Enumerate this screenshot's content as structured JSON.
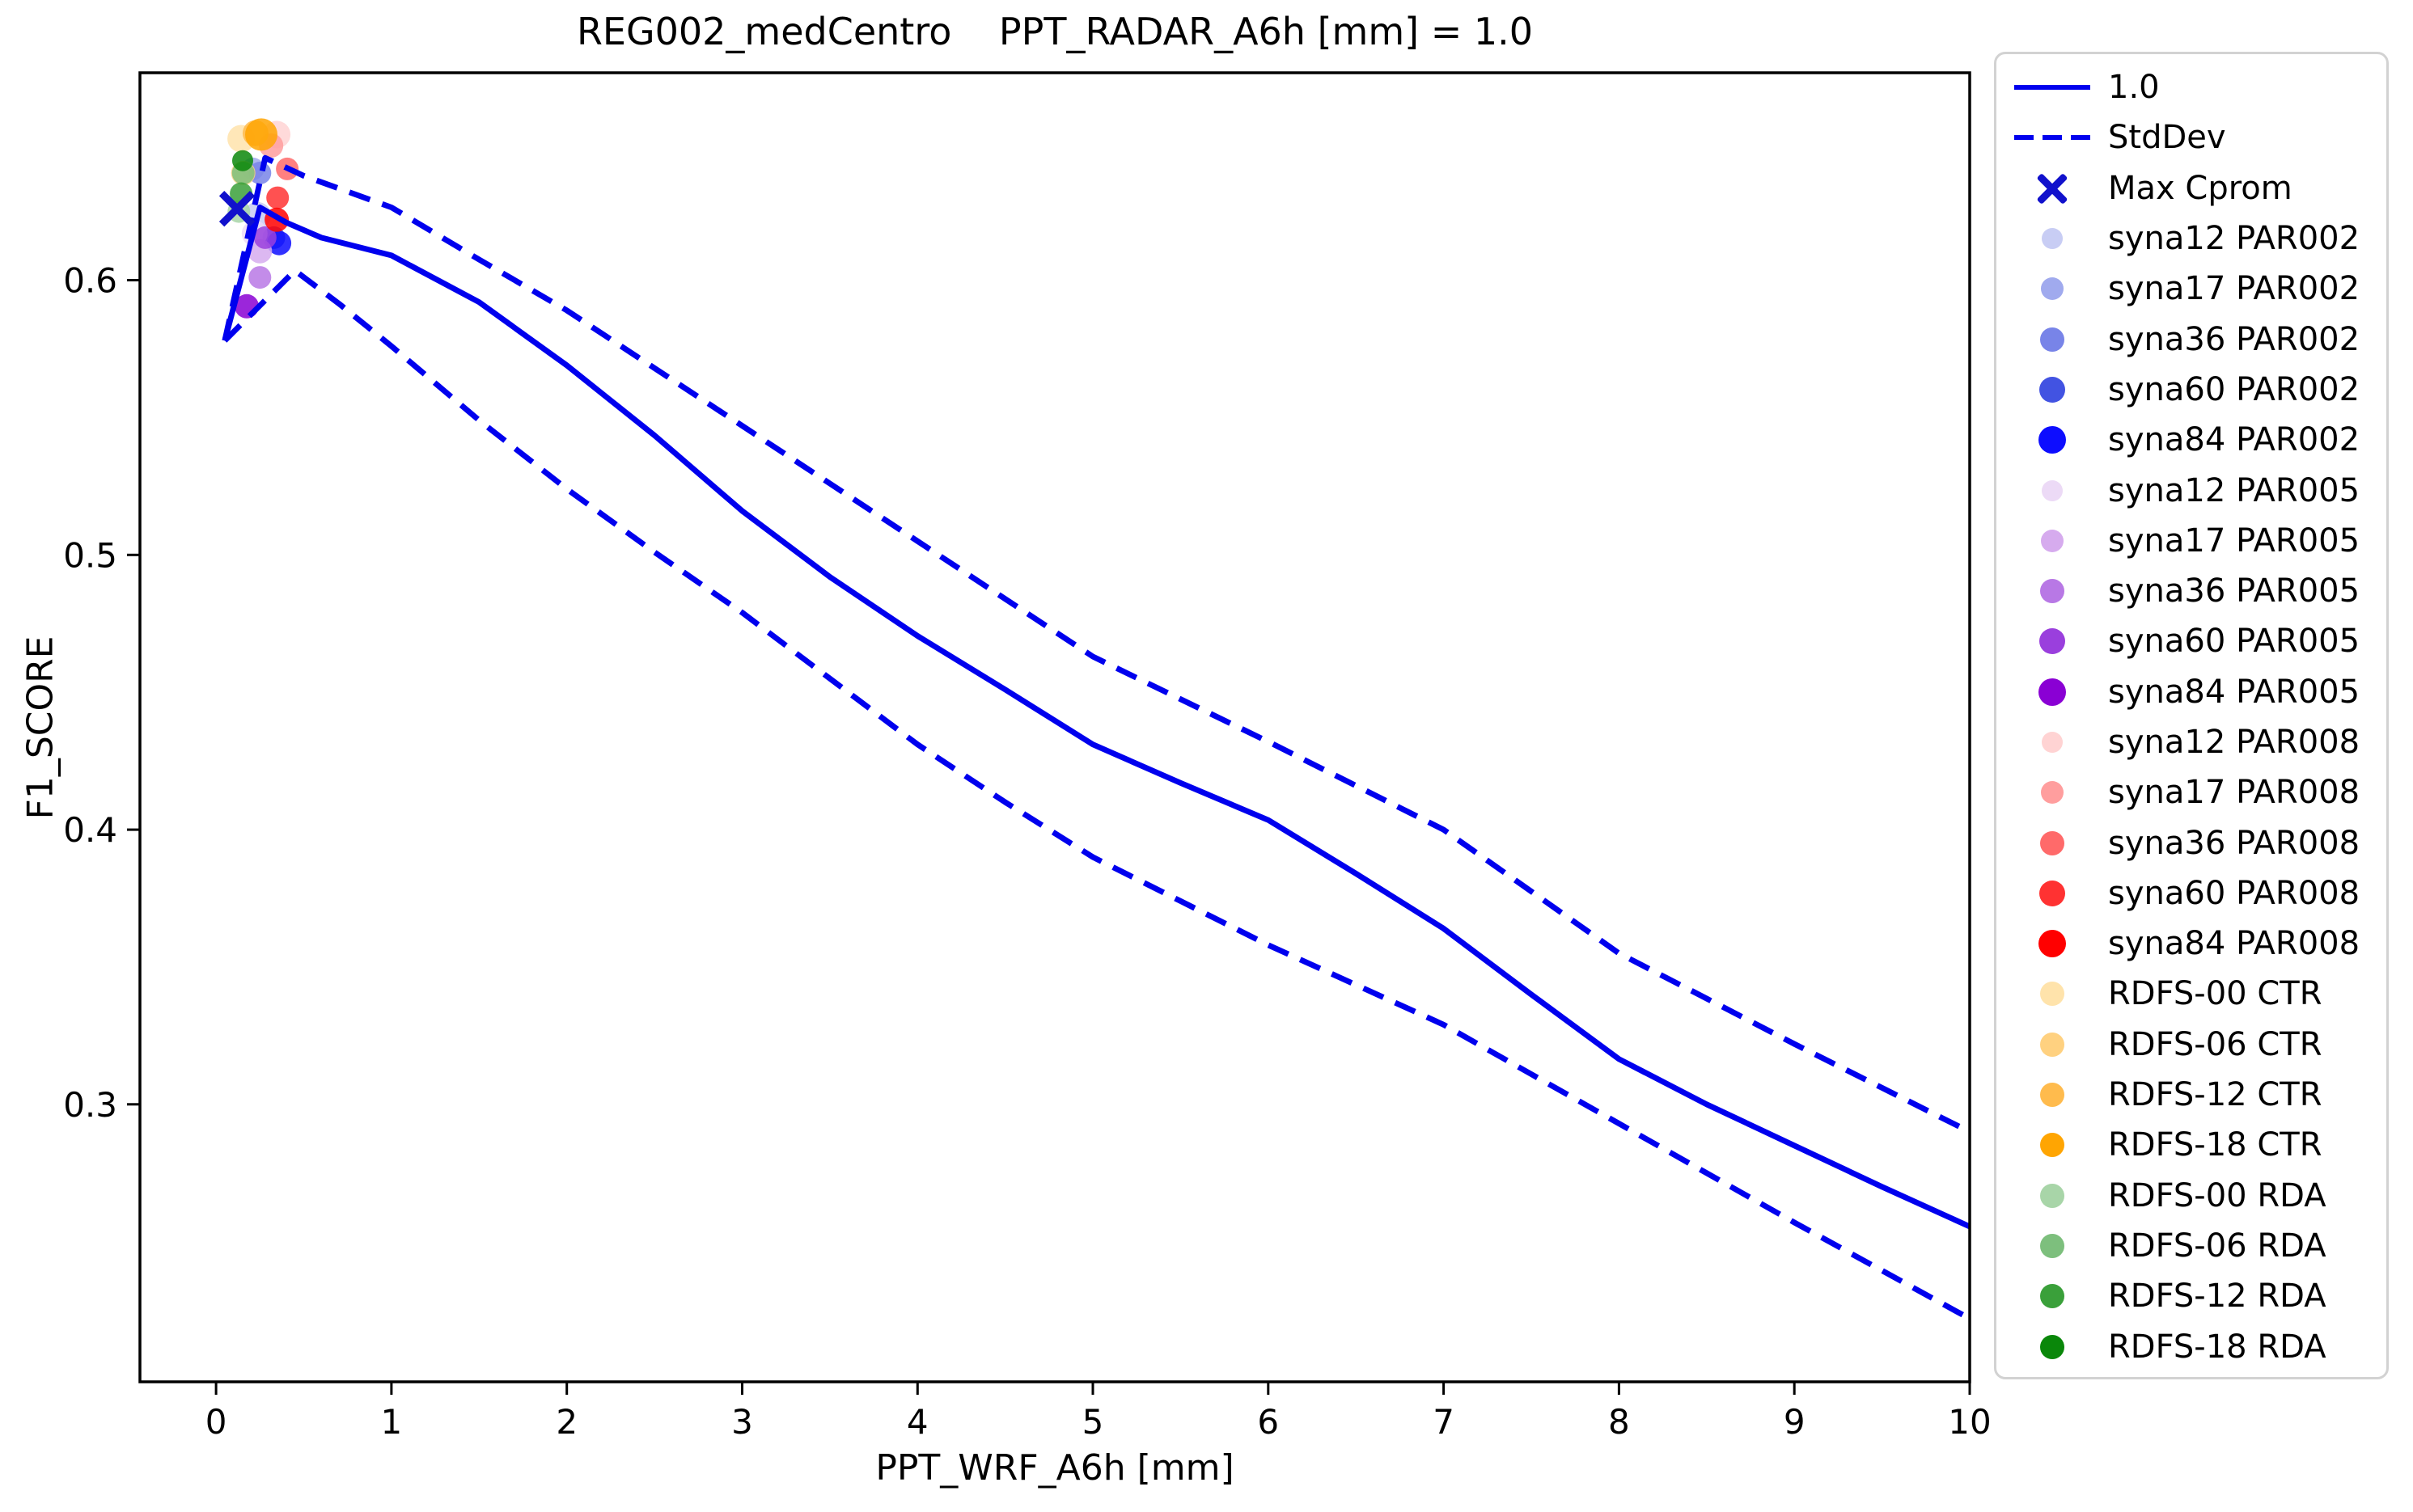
{
  "title": "REG002_medCentro    PPT_RADAR_A6h [mm] = 1.0",
  "xlabel": "PPT_WRF_A6h [mm]",
  "ylabel": "F1_SCORE",
  "colors": {
    "line": "#0000ee",
    "max_cprom": "#1111cc",
    "axis": "#000000",
    "legend_border": "#d2d2d2",
    "background": "#ffffff"
  },
  "chart_data": {
    "type": "line",
    "title": "REG002_medCentro    PPT_RADAR_A6h [mm] = 1.0",
    "xlabel": "PPT_WRF_A6h [mm]",
    "ylabel": "F1_SCORE",
    "xlim": [
      -0.434,
      10.0
    ],
    "ylim": [
      0.199,
      0.6755
    ],
    "xticks": [
      0,
      1,
      2,
      3,
      4,
      5,
      6,
      7,
      8,
      9,
      10
    ],
    "yticks": [
      0.3,
      0.4,
      0.5,
      0.6
    ],
    "grid": false,
    "legend_position": "outside-right",
    "series": [
      {
        "name": "1.0",
        "style": "solid",
        "color": "#0000ee",
        "points": [
          [
            0.05,
            0.578
          ],
          [
            0.25,
            0.6265
          ],
          [
            0.4,
            0.621
          ],
          [
            0.6,
            0.6155
          ],
          [
            1,
            0.609
          ],
          [
            1.5,
            0.592
          ],
          [
            2,
            0.569
          ],
          [
            2.5,
            0.5435
          ],
          [
            3,
            0.516
          ],
          [
            3.5,
            0.492
          ],
          [
            4,
            0.4705
          ],
          [
            4.5,
            0.451
          ],
          [
            5,
            0.431
          ],
          [
            5.5,
            0.417
          ],
          [
            6,
            0.4035
          ],
          [
            6.5,
            0.384
          ],
          [
            7,
            0.364
          ],
          [
            7.5,
            0.34
          ],
          [
            8,
            0.3165
          ],
          [
            8.5,
            0.3
          ],
          [
            9,
            0.285
          ],
          [
            9.5,
            0.27
          ],
          [
            10,
            0.2555
          ]
        ]
      },
      {
        "name": "StdDev upper",
        "style": "dashed",
        "color": "#0000ee",
        "points": [
          [
            0.05,
            0.578
          ],
          [
            0.28,
            0.6445
          ],
          [
            0.5,
            0.638
          ],
          [
            1,
            0.6265
          ],
          [
            1.5,
            0.6075
          ],
          [
            2,
            0.589
          ],
          [
            2.5,
            0.568
          ],
          [
            3,
            0.547
          ],
          [
            3.5,
            0.526
          ],
          [
            4,
            0.505
          ],
          [
            4.5,
            0.484
          ],
          [
            5,
            0.463
          ],
          [
            5.5,
            0.4475
          ],
          [
            6,
            0.432
          ],
          [
            6.5,
            0.416
          ],
          [
            7,
            0.4
          ],
          [
            7.5,
            0.3775
          ],
          [
            8,
            0.355
          ],
          [
            8.5,
            0.3385
          ],
          [
            9,
            0.322
          ],
          [
            9.5,
            0.306
          ],
          [
            10,
            0.29
          ]
        ]
      },
      {
        "name": "StdDev lower",
        "style": "dashed",
        "color": "#0000ee",
        "points": [
          [
            0.05,
            0.578
          ],
          [
            0.45,
            0.6035
          ],
          [
            0.7,
            0.5915
          ],
          [
            1,
            0.576
          ],
          [
            1.5,
            0.549
          ],
          [
            2,
            0.524
          ],
          [
            2.5,
            0.501
          ],
          [
            3,
            0.479
          ],
          [
            3.5,
            0.455
          ],
          [
            4,
            0.431
          ],
          [
            4.5,
            0.41
          ],
          [
            5,
            0.39
          ],
          [
            5.5,
            0.374
          ],
          [
            6,
            0.358
          ],
          [
            6.5,
            0.3435
          ],
          [
            7,
            0.329
          ],
          [
            7.5,
            0.311
          ],
          [
            8,
            0.293
          ],
          [
            8.5,
            0.275
          ],
          [
            9,
            0.257
          ],
          [
            9.5,
            0.2395
          ],
          [
            10,
            0.222
          ]
        ]
      }
    ],
    "max_cprom_point": {
      "x": 0.12,
      "y": 0.626
    },
    "scatter_points": [
      {
        "name": "syna12 PAR002",
        "x": 0.235,
        "y": 0.6235,
        "color": "#c8cdf4",
        "r": 17
      },
      {
        "name": "syna17 PAR002",
        "x": 0.21,
        "y": 0.6405,
        "color": "#a0aaee",
        "r": 14
      },
      {
        "name": "syna36 PAR002",
        "x": 0.25,
        "y": 0.639,
        "color": "#7884e8",
        "r": 14
      },
      {
        "name": "syna60 PAR002",
        "x": 0.33,
        "y": 0.6155,
        "color": "#4253e2",
        "r": 14
      },
      {
        "name": "syna84 PAR002",
        "x": 0.36,
        "y": 0.6135,
        "color": "#0d0dff",
        "r": 15
      },
      {
        "name": "syna12 PAR005",
        "x": 0.22,
        "y": 0.617,
        "color": "#ecdaf6",
        "r": 16
      },
      {
        "name": "syna17 PAR005",
        "x": 0.25,
        "y": 0.6105,
        "color": "#d6abee",
        "r": 15
      },
      {
        "name": "syna36 PAR005",
        "x": 0.25,
        "y": 0.601,
        "color": "#b878e5",
        "r": 14
      },
      {
        "name": "syna60 PAR005",
        "x": 0.28,
        "y": 0.6155,
        "color": "#9a3fdd",
        "r": 14
      },
      {
        "name": "syna84 PAR005",
        "x": 0.175,
        "y": 0.5905,
        "color": "#8a00d4",
        "r": 15
      },
      {
        "name": "syna12 PAR008",
        "x": 0.346,
        "y": 0.653,
        "color": "#ffd3d3",
        "r": 17
      },
      {
        "name": "syna17 PAR008",
        "x": 0.314,
        "y": 0.649,
        "color": "#ff9e9e",
        "r": 15
      },
      {
        "name": "syna36 PAR008",
        "x": 0.406,
        "y": 0.6405,
        "color": "#ff6a6a",
        "r": 14
      },
      {
        "name": "syna60 PAR008",
        "x": 0.351,
        "y": 0.63,
        "color": "#ff3232",
        "r": 14
      },
      {
        "name": "syna84 PAR008",
        "x": 0.346,
        "y": 0.622,
        "color": "#ff0000",
        "r": 15
      },
      {
        "name": "RDFS-00 CTR",
        "x": 0.143,
        "y": 0.6515,
        "color": "#ffe3ab",
        "r": 17
      },
      {
        "name": "RDFS-06 CTR",
        "x": 0.155,
        "y": 0.639,
        "color": "#ffd180",
        "r": 15
      },
      {
        "name": "RDFS-12 CTR",
        "x": 0.225,
        "y": 0.6535,
        "color": "#ffbb4d",
        "r": 16
      },
      {
        "name": "RDFS-18 CTR",
        "x": 0.258,
        "y": 0.653,
        "color": "#ffa502",
        "r": 20
      },
      {
        "name": "RDFS-00 RDA",
        "x": 0.13,
        "y": 0.625,
        "color": "#a8d5a8",
        "r": 14
      },
      {
        "name": "RDFS-06 RDA",
        "x": 0.155,
        "y": 0.639,
        "color": "#7dbf7d",
        "r": 14
      },
      {
        "name": "RDFS-12 RDA",
        "x": 0.143,
        "y": 0.6315,
        "color": "#3aa03a",
        "r": 14
      },
      {
        "name": "RDFS-18 RDA",
        "x": 0.152,
        "y": 0.6435,
        "color": "#0a870a",
        "r": 13
      }
    ]
  },
  "legend": {
    "entries": [
      {
        "label": "1.0",
        "type": "line",
        "color": "#0000ee"
      },
      {
        "label": "StdDev",
        "type": "dash",
        "color": "#0000ee"
      },
      {
        "label": "Max Cprom",
        "type": "x",
        "color": "#1111cc"
      },
      {
        "label": "syna12 PAR002",
        "type": "dot",
        "color": "#c8cdf4",
        "msize": 13
      },
      {
        "label": "syna17 PAR002",
        "type": "dot",
        "color": "#a0aaee",
        "msize": 14
      },
      {
        "label": "syna36 PAR002",
        "type": "dot",
        "color": "#7884e8",
        "msize": 15
      },
      {
        "label": "syna60 PAR002",
        "type": "dot",
        "color": "#4253e2",
        "msize": 16
      },
      {
        "label": "syna84 PAR002",
        "type": "dot",
        "color": "#0d0dff",
        "msize": 17
      },
      {
        "label": "syna12 PAR005",
        "type": "dot",
        "color": "#ecdaf6",
        "msize": 13
      },
      {
        "label": "syna17 PAR005",
        "type": "dot",
        "color": "#d6abee",
        "msize": 14
      },
      {
        "label": "syna36 PAR005",
        "type": "dot",
        "color": "#b878e5",
        "msize": 15
      },
      {
        "label": "syna60 PAR005",
        "type": "dot",
        "color": "#9a3fdd",
        "msize": 16
      },
      {
        "label": "syna84 PAR005",
        "type": "dot",
        "color": "#8a00d4",
        "msize": 17
      },
      {
        "label": "syna12 PAR008",
        "type": "dot",
        "color": "#ffd3d3",
        "msize": 13
      },
      {
        "label": "syna17 PAR008",
        "type": "dot",
        "color": "#ff9e9e",
        "msize": 14
      },
      {
        "label": "syna36 PAR008",
        "type": "dot",
        "color": "#ff6a6a",
        "msize": 15
      },
      {
        "label": "syna60 PAR008",
        "type": "dot",
        "color": "#ff3232",
        "msize": 16
      },
      {
        "label": "syna84 PAR008",
        "type": "dot",
        "color": "#ff0000",
        "msize": 17
      },
      {
        "label": "RDFS-00 CTR",
        "type": "dot",
        "color": "#ffe3ab",
        "msize": 15
      },
      {
        "label": "RDFS-06 CTR",
        "type": "dot",
        "color": "#ffd180",
        "msize": 15
      },
      {
        "label": "RDFS-12 CTR",
        "type": "dot",
        "color": "#ffbb4d",
        "msize": 15
      },
      {
        "label": "RDFS-18 CTR",
        "type": "dot",
        "color": "#ffa502",
        "msize": 15
      },
      {
        "label": "RDFS-00 RDA",
        "type": "dot",
        "color": "#a8d5a8",
        "msize": 15
      },
      {
        "label": "RDFS-06 RDA",
        "type": "dot",
        "color": "#7dbf7d",
        "msize": 15
      },
      {
        "label": "RDFS-12 RDA",
        "type": "dot",
        "color": "#3aa03a",
        "msize": 15
      },
      {
        "label": "RDFS-18 RDA",
        "type": "dot",
        "color": "#0a870a",
        "msize": 15
      }
    ]
  }
}
